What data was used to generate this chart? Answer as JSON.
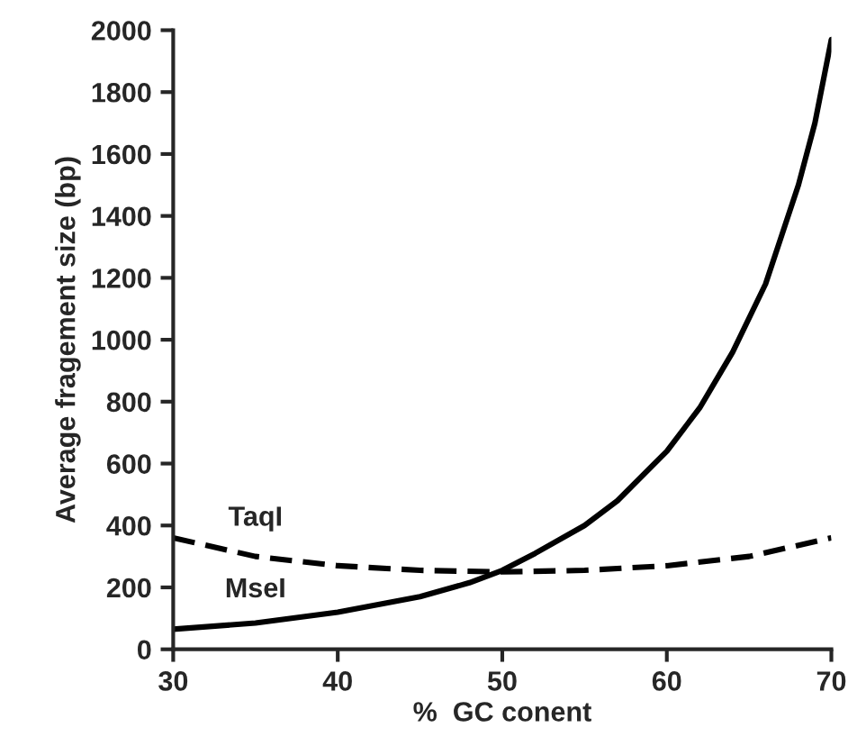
{
  "chart_data": {
    "type": "line",
    "xlabel": "%  GC conent",
    "ylabel": "Average fragement size (bp)",
    "xlim": [
      30,
      70
    ],
    "xticks": [
      30,
      40,
      50,
      60,
      70
    ],
    "ylim": [
      0,
      2000
    ],
    "yticks": [
      0,
      200,
      400,
      600,
      800,
      1000,
      1200,
      1400,
      1600,
      1800,
      2000
    ],
    "grid": false,
    "legend": false,
    "marker": "none",
    "series": [
      {
        "name": "TaqI",
        "color": "#000000",
        "line_style": "dashed",
        "x": [
          30,
          35,
          40,
          45,
          50,
          55,
          60,
          65,
          70
        ],
        "values": [
          360,
          300,
          270,
          255,
          250,
          255,
          270,
          300,
          360
        ]
      },
      {
        "name": "MseI",
        "color": "#000000",
        "line_style": "solid",
        "x": [
          30,
          35,
          40,
          45,
          48,
          50,
          52,
          55,
          57,
          60,
          62,
          64,
          66,
          68,
          69,
          70
        ],
        "values": [
          65,
          85,
          120,
          170,
          215,
          255,
          310,
          400,
          480,
          640,
          780,
          960,
          1180,
          1500,
          1700,
          1970
        ]
      }
    ]
  }
}
